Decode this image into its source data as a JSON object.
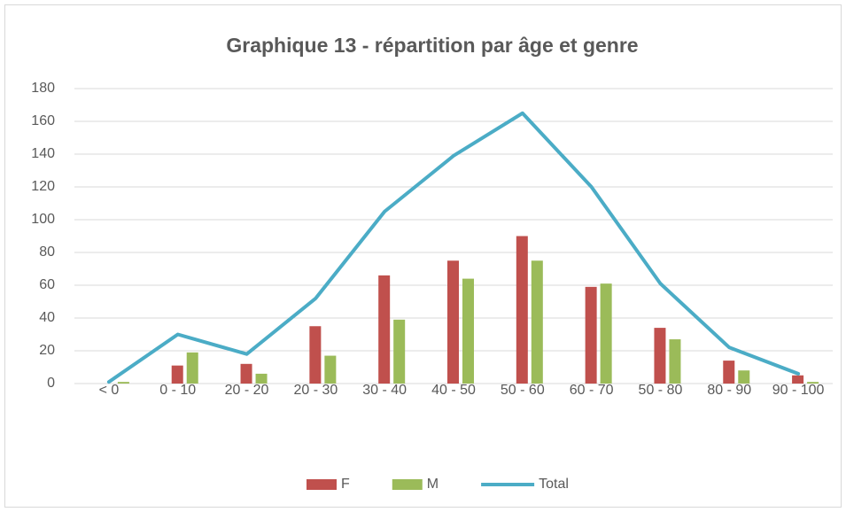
{
  "chart_data": {
    "type": "bar-line",
    "title": "Graphique 13 - répartition par âge et genre",
    "categories": [
      "< 0",
      "0 - 10",
      "20 - 20",
      "20 - 30",
      "30 - 40",
      "40 - 50",
      "50 - 60",
      "60 - 70",
      "50 - 80",
      "80 - 90",
      "90 - 100"
    ],
    "series": [
      {
        "name": "F",
        "type": "bar",
        "color": "#c0504d",
        "values": [
          0,
          11,
          12,
          35,
          66,
          75,
          90,
          59,
          34,
          14,
          5
        ]
      },
      {
        "name": "M",
        "type": "bar",
        "color": "#9bbb59",
        "values": [
          1,
          19,
          6,
          17,
          39,
          64,
          75,
          61,
          27,
          8,
          1
        ]
      },
      {
        "name": "Total",
        "type": "line",
        "color": "#4bacc6",
        "values": [
          1,
          30,
          18,
          52,
          105,
          139,
          165,
          120,
          61,
          22,
          6
        ]
      }
    ],
    "ylim": [
      0,
      180
    ],
    "yticks": [
      0,
      20,
      40,
      60,
      80,
      100,
      120,
      140,
      160,
      180
    ],
    "grid": true,
    "legend": "bottom"
  }
}
